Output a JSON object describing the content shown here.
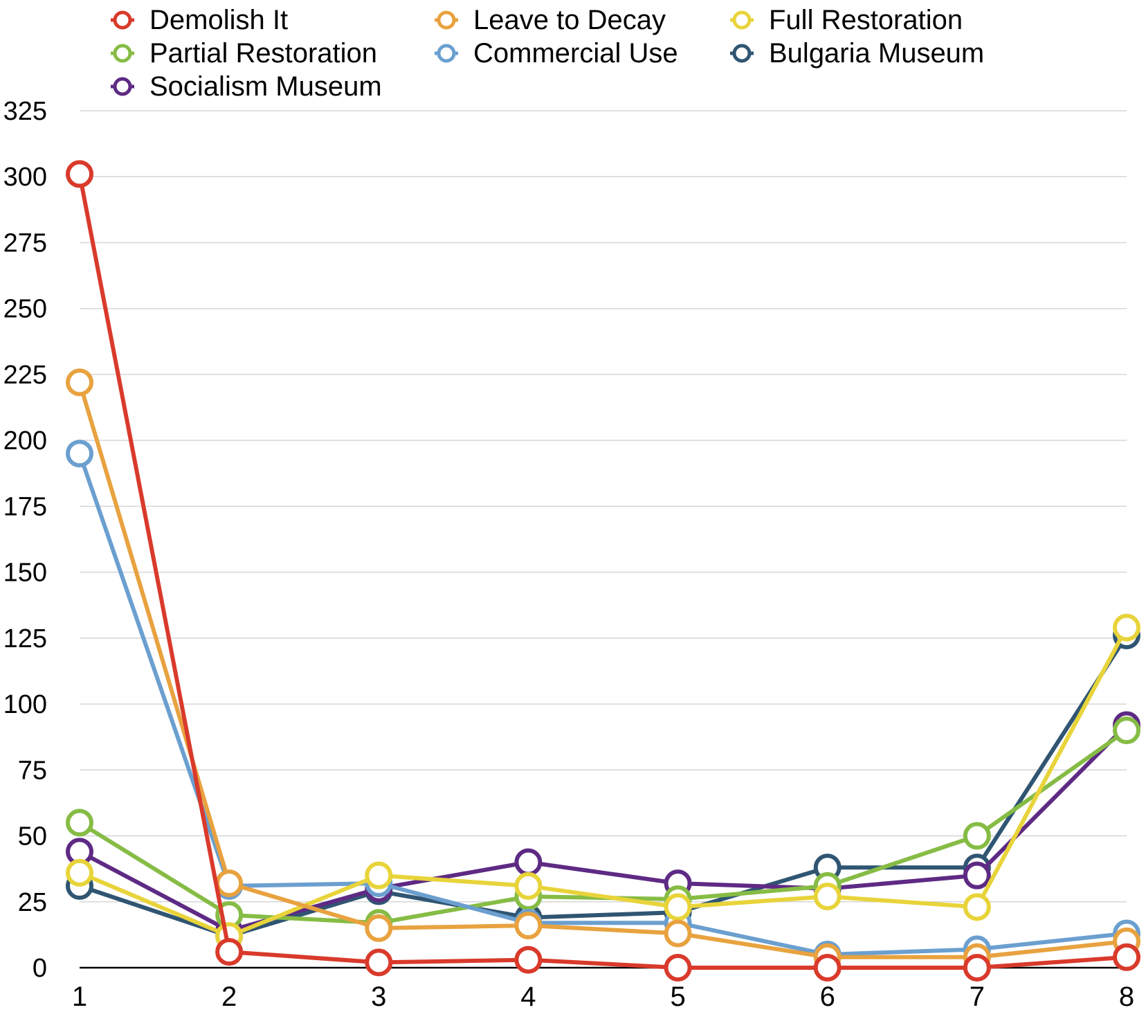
{
  "chart_data": {
    "type": "line",
    "title": "",
    "xlabel": "",
    "ylabel": "",
    "x": [
      1,
      2,
      3,
      4,
      5,
      6,
      7,
      8
    ],
    "ylim": [
      0,
      325
    ],
    "yticks": [
      0,
      25,
      50,
      75,
      100,
      125,
      150,
      175,
      200,
      225,
      250,
      275,
      300,
      325
    ],
    "grid": true,
    "legend_position": "top",
    "series": [
      {
        "name": "Demolish It",
        "color": "#d93a2b",
        "values": [
          301,
          6,
          2,
          3,
          0,
          0,
          0,
          4
        ]
      },
      {
        "name": "Leave to Decay",
        "color": "#e8a23f",
        "values": [
          222,
          32,
          15,
          16,
          13,
          4,
          4,
          10
        ]
      },
      {
        "name": "Full Restoration",
        "color": "#e8d43a",
        "values": [
          36,
          12,
          35,
          31,
          23,
          27,
          23,
          129
        ]
      },
      {
        "name": "Partial Restoration",
        "color": "#86bc45",
        "values": [
          55,
          20,
          17,
          27,
          26,
          31,
          50,
          90
        ]
      },
      {
        "name": "Commercial Use",
        "color": "#6b9fcf",
        "values": [
          195,
          31,
          32,
          17,
          17,
          5,
          7,
          13
        ]
      },
      {
        "name": "Bulgaria Museum",
        "color": "#2f5572",
        "values": [
          31,
          12,
          29,
          19,
          21,
          38,
          38,
          126
        ]
      },
      {
        "name": "Socialism Museum",
        "color": "#5e2a84",
        "values": [
          44,
          14,
          30,
          40,
          32,
          30,
          35,
          92
        ]
      }
    ],
    "draw_order": [
      "Bulgaria Museum",
      "Socialism Museum",
      "Partial Restoration",
      "Commercial Use",
      "Full Restoration",
      "Leave to Decay",
      "Demolish It"
    ]
  }
}
